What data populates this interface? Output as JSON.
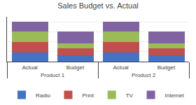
{
  "chart_data": {
    "type": "bar",
    "title": "Sales Budget vs. Actual",
    "stacked": true,
    "categories": [
      [
        "Product 1",
        "Actual"
      ],
      [
        "Product 1",
        "Budget"
      ],
      [
        "Product 2",
        "Actual"
      ],
      [
        "Product 2",
        "Budget"
      ]
    ],
    "series": [
      {
        "name": "Radio",
        "color": "#4472C4",
        "values": [
          1.8,
          1.2,
          1.8,
          1.2
        ]
      },
      {
        "name": "Print",
        "color": "#C0504D",
        "values": [
          2.2,
          1.5,
          2.2,
          1.5
        ]
      },
      {
        "name": "TV",
        "color": "#9BBB59",
        "values": [
          2.0,
          1.0,
          2.0,
          1.0
        ]
      },
      {
        "name": "Internet",
        "color": "#8064A2",
        "values": [
          2.0,
          2.3,
          2.0,
          2.3
        ]
      }
    ],
    "ylim": [
      0,
      9
    ],
    "yticks": [
      0,
      2,
      4,
      6,
      8
    ],
    "grid": true,
    "legend": "bottom",
    "tick_labels": "x"
  }
}
